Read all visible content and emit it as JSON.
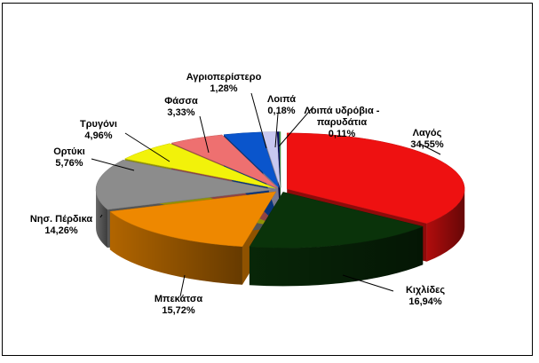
{
  "chart_data": {
    "type": "pie",
    "style": "3d-exploded-oval",
    "legend": "none",
    "labels_outside_with_leader_lines": true,
    "decimal_separator": ",",
    "slices": [
      {
        "label": "Λαγός",
        "value": 34.55,
        "display": "34,55%",
        "color": "#ee1111"
      },
      {
        "label": "Κιχλίδες",
        "value": 16.94,
        "display": "16,94%",
        "color": "#0a330a"
      },
      {
        "label": "Μπεκάτσα",
        "value": 15.72,
        "display": "15,72%",
        "color": "#ee8800"
      },
      {
        "label": "Νησ. Πέρδικα",
        "value": 14.26,
        "display": "14,26%",
        "color": "#8c8c8c"
      },
      {
        "label": "Ορτύκι",
        "value": 5.76,
        "display": "5,76%",
        "color": "#f2f20a"
      },
      {
        "label": "Τρυγόνι",
        "value": 4.96,
        "display": "4,96%",
        "color": "#ee7070"
      },
      {
        "label": "Φάσσα",
        "value": 3.33,
        "display": "3,33%",
        "color": "#0a55cc"
      },
      {
        "label": "Αγριοπερίστερο",
        "value": 1.28,
        "display": "1,28%",
        "color": "#c8c8f0"
      },
      {
        "label": "Λοιπά",
        "value": 0.18,
        "display": "0,18%",
        "color": "#0a0a66"
      },
      {
        "label": "Λοιπά υδρόβια - παρυδάτια",
        "value": 0.11,
        "display": "0,11%",
        "color": "#4aa34a"
      }
    ]
  }
}
